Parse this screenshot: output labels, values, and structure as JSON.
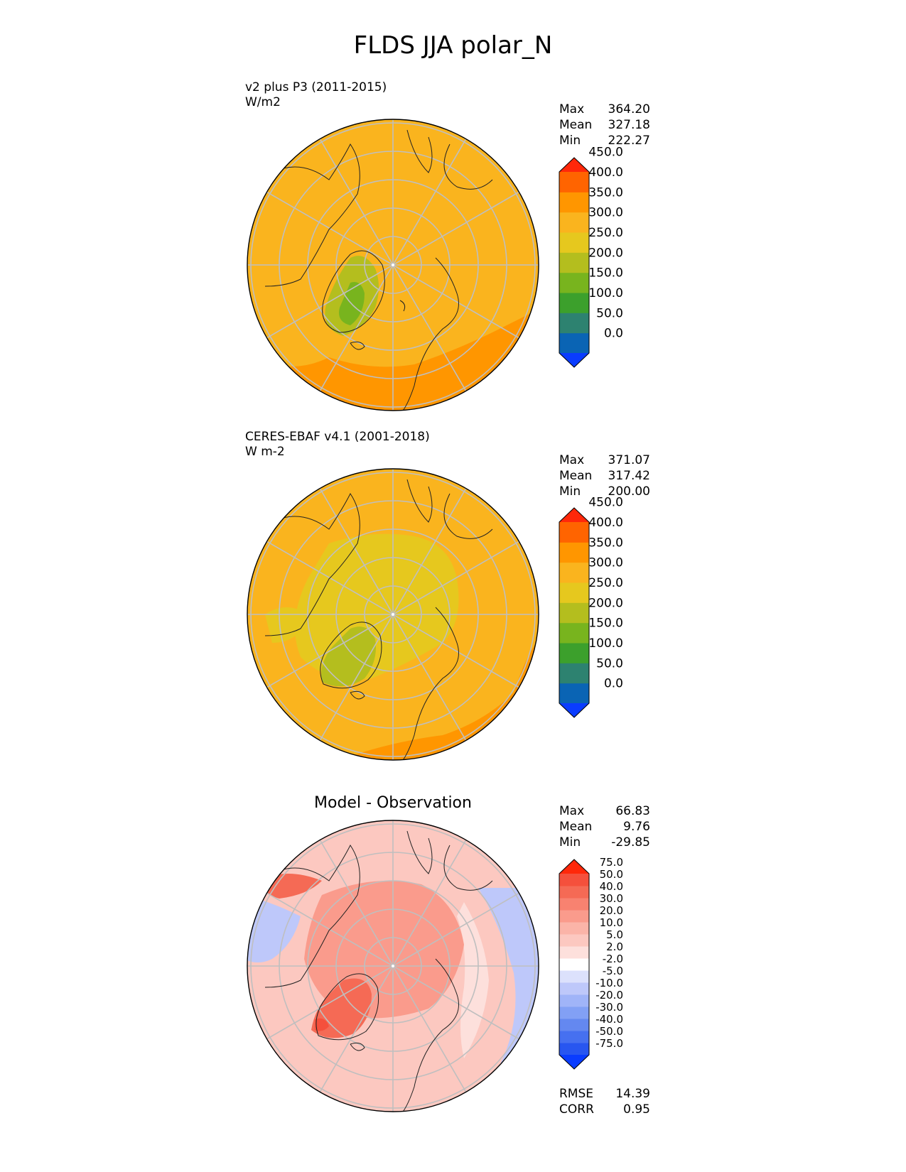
{
  "figure_title": "FLDS JJA polar_N",
  "panels": [
    {
      "title_line1": "v2 plus P3 (2011-2015)",
      "title_line2": "W/m2",
      "center_title": "",
      "stats": [
        {
          "label": "Max",
          "value": "364.20"
        },
        {
          "label": "Mean",
          "value": "327.18"
        },
        {
          "label": "Min",
          "value": "222.27"
        }
      ],
      "colorbar": {
        "colors": [
          "#0a3cff",
          "#0a64b4",
          "#2d8270",
          "#3ca02c",
          "#78b41e",
          "#b4be1e",
          "#e6c81e",
          "#fab41e",
          "#ff9600",
          "#ff6400",
          "#ff280a"
        ],
        "ticks": [
          "0.0",
          "50.0",
          "100.0",
          "150.0",
          "200.0",
          "250.0",
          "300.0",
          "350.0",
          "400.0",
          "450.0"
        ]
      },
      "extra": []
    },
    {
      "title_line1": "CERES-EBAF v4.1 (2001-2018)",
      "title_line2": "W m-2",
      "center_title": "",
      "stats": [
        {
          "label": "Max",
          "value": "371.07"
        },
        {
          "label": "Mean",
          "value": "317.42"
        },
        {
          "label": "Min",
          "value": "200.00"
        }
      ],
      "colorbar": {
        "colors": [
          "#0a3cff",
          "#0a64b4",
          "#2d8270",
          "#3ca02c",
          "#78b41e",
          "#b4be1e",
          "#e6c81e",
          "#fab41e",
          "#ff9600",
          "#ff6400",
          "#ff280a"
        ],
        "ticks": [
          "0.0",
          "50.0",
          "100.0",
          "150.0",
          "200.0",
          "250.0",
          "300.0",
          "350.0",
          "400.0",
          "450.0"
        ]
      },
      "extra": []
    },
    {
      "title_line1": "",
      "title_line2": "",
      "center_title": "Model - Observation",
      "stats": [
        {
          "label": "Max",
          "value": "66.83"
        },
        {
          "label": "Mean",
          "value": "9.76"
        },
        {
          "label": "Min",
          "value": "-29.85"
        }
      ],
      "colorbar": {
        "colors": [
          "#0a3cff",
          "#2856f0",
          "#4670f0",
          "#6488f0",
          "#82a0f5",
          "#a0b4f8",
          "#bec8fa",
          "#dce1fc",
          "#ffffff",
          "#fde0dc",
          "#fcc8c0",
          "#fbb4a8",
          "#fa9b8c",
          "#f88270",
          "#f56a55",
          "#f5503c",
          "#ff280a"
        ],
        "ticks": [
          "-75.0",
          "-50.0",
          "-40.0",
          "-30.0",
          "-20.0",
          "-10.0",
          "-5.0",
          "-2.0",
          "2.0",
          "5.0",
          "10.0",
          "20.0",
          "30.0",
          "40.0",
          "50.0",
          "75.0"
        ]
      },
      "extra": [
        {
          "label": "RMSE",
          "value": "14.39"
        },
        {
          "label": "CORR",
          "value": "0.95"
        }
      ]
    }
  ],
  "chart_data": [
    {
      "type": "heatmap",
      "projection": "north polar stereographic",
      "season": "JJA",
      "variable": "FLDS",
      "field_colors": {
        "ocean": "#fab41e",
        "land_low": "#b4be1e",
        "greenland": "#78b41e",
        "edge": "#ff9600"
      }
    },
    {
      "type": "heatmap",
      "projection": "north polar stereographic",
      "season": "JJA",
      "variable": "FLDS",
      "field_colors": {
        "ocean": "#fab41e",
        "arctic": "#e6c81e",
        "greenland": "#b4be1e",
        "edge": "#ff9600"
      }
    },
    {
      "type": "heatmap",
      "projection": "north polar stereographic",
      "season": "JJA",
      "variable": "FLDS difference",
      "field_colors": {
        "base": "#fcc8c0",
        "arctic": "#fa9b8c",
        "greenland": "#f56a55",
        "negative": "#bec8fa"
      }
    }
  ]
}
